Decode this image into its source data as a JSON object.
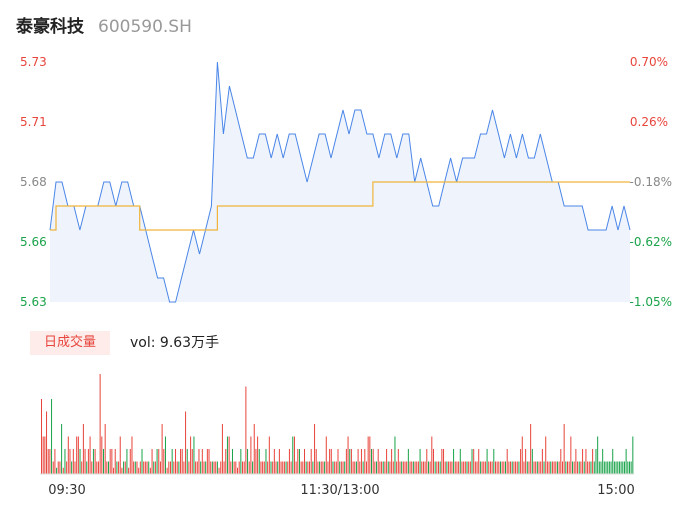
{
  "header": {
    "name": "泰豪科技",
    "code": "600590.SH"
  },
  "volume_panel": {
    "tag_label": "日成交量",
    "vol_text": "vol: 9.63万手"
  },
  "colors": {
    "up": "#e8453c",
    "down": "#1aa34a",
    "price_line": "#4a86e8",
    "avg_line": "#f0b43c",
    "area_fill": "#eef3fc"
  },
  "chart_data": [
    {
      "type": "line",
      "title": "",
      "y_ticks": [
        "5.73",
        "5.71",
        "5.68",
        "5.66",
        "5.63"
      ],
      "y_right_ticks": [
        "0.70%",
        "0.26%",
        "-0.18%",
        "-0.62%",
        "-1.05%"
      ],
      "ylim": [
        5.63,
        5.73
      ],
      "x_labels": [
        "09:30",
        "11:30/13:00",
        "15:00"
      ],
      "grid": false,
      "series": [
        {
          "values": [
            5.66,
            5.68,
            5.68,
            5.67,
            5.67,
            5.66,
            5.67,
            5.67,
            5.67,
            5.68,
            5.68,
            5.67,
            5.68,
            5.68,
            5.67,
            5.67,
            5.66,
            5.65,
            5.64,
            5.64,
            5.63,
            5.63,
            5.64,
            5.65,
            5.66,
            5.65,
            5.66,
            5.67,
            5.73,
            5.7,
            5.72,
            5.71,
            5.7,
            5.69,
            5.69,
            5.7,
            5.7,
            5.69,
            5.7,
            5.69,
            5.7,
            5.7,
            5.69,
            5.68,
            5.69,
            5.7,
            5.7,
            5.69,
            5.7,
            5.71,
            5.7,
            5.71,
            5.71,
            5.7,
            5.7,
            5.69,
            5.7,
            5.7,
            5.69,
            5.7,
            5.7,
            5.68,
            5.69,
            5.68,
            5.67,
            5.67,
            5.68,
            5.69,
            5.68,
            5.69,
            5.69,
            5.69,
            5.7,
            5.7,
            5.71,
            5.7,
            5.69,
            5.7,
            5.69,
            5.7,
            5.69,
            5.69,
            5.7,
            5.69,
            5.68,
            5.68,
            5.67,
            5.67,
            5.67,
            5.67,
            5.66,
            5.66,
            5.66,
            5.66,
            5.67,
            5.66,
            5.67,
            5.66
          ]
        },
        {
          "values": [
            5.66,
            5.67,
            5.67,
            5.67,
            5.67,
            5.67,
            5.67,
            5.67,
            5.67,
            5.67,
            5.67,
            5.67,
            5.67,
            5.67,
            5.67,
            5.66,
            5.66,
            5.66,
            5.66,
            5.66,
            5.66,
            5.66,
            5.66,
            5.66,
            5.66,
            5.66,
            5.66,
            5.66,
            5.67,
            5.67,
            5.67,
            5.67,
            5.67,
            5.67,
            5.67,
            5.67,
            5.67,
            5.67,
            5.67,
            5.67,
            5.67,
            5.67,
            5.67,
            5.67,
            5.67,
            5.67,
            5.67,
            5.67,
            5.67,
            5.67,
            5.67,
            5.67,
            5.67,
            5.67,
            5.68,
            5.68,
            5.68,
            5.68,
            5.68,
            5.68,
            5.68,
            5.68,
            5.68,
            5.68,
            5.68,
            5.68,
            5.68,
            5.68,
            5.68,
            5.68,
            5.68,
            5.68,
            5.68,
            5.68,
            5.68,
            5.68,
            5.68,
            5.68,
            5.68,
            5.68,
            5.68,
            5.68,
            5.68,
            5.68,
            5.68,
            5.68,
            5.68,
            5.68,
            5.68,
            5.68,
            5.68,
            5.68,
            5.68,
            5.68,
            5.68,
            5.68,
            5.68,
            5.68
          ]
        }
      ]
    },
    {
      "type": "bar",
      "title": "",
      "values": [
        6,
        3,
        3,
        5,
        2,
        2,
        6,
        1,
        2,
        0.5,
        1,
        1,
        4,
        0.5,
        2,
        1,
        3,
        2,
        1,
        2,
        1,
        3,
        3,
        2,
        1,
        4,
        2,
        1,
        2,
        3,
        1,
        2,
        2,
        1,
        1,
        8,
        3,
        2,
        4,
        1,
        1,
        2,
        2,
        0.5,
        2,
        1,
        1,
        3,
        0.5,
        1,
        1,
        2,
        0.5,
        2,
        3,
        1,
        1,
        1,
        0.5,
        1,
        2,
        1,
        1,
        1,
        1,
        0.5,
        2,
        1,
        1,
        2,
        2,
        1,
        4,
        2,
        3,
        0.5,
        1,
        1,
        2,
        1,
        2,
        1,
        1,
        2,
        2,
        1,
        5,
        2,
        1,
        3,
        2,
        3,
        1,
        1,
        2,
        1,
        2,
        1,
        1,
        2,
        2,
        1,
        1,
        1,
        1,
        1,
        0.5,
        1,
        4,
        1,
        2,
        3,
        3,
        1,
        2,
        1,
        1,
        0.5,
        1,
        2,
        1,
        1,
        7,
        2,
        1,
        3,
        1,
        4,
        2,
        3,
        2,
        1,
        1,
        1,
        2,
        1,
        3,
        1,
        1,
        2,
        1,
        1,
        2,
        1,
        1,
        1,
        1,
        1,
        2,
        1,
        3,
        3,
        1,
        2,
        2,
        1,
        1,
        2,
        1,
        1,
        1,
        2,
        1,
        4,
        2,
        1,
        1,
        1,
        1,
        1,
        3,
        1,
        2,
        2,
        1,
        1,
        1,
        2,
        1,
        1,
        1,
        1,
        2,
        3,
        2,
        2,
        1,
        1,
        1,
        2,
        1,
        2,
        1,
        2,
        1,
        3,
        3,
        2,
        2,
        1,
        1,
        2,
        1,
        1,
        1,
        1,
        2,
        1,
        1,
        2,
        1,
        3,
        1,
        2,
        1,
        1,
        1,
        1,
        1,
        2,
        1,
        1,
        1,
        1,
        1,
        1,
        2,
        1,
        1,
        1,
        2,
        1,
        1,
        3,
        2,
        1,
        1,
        1,
        1,
        2,
        2,
        1,
        1,
        1,
        1,
        1,
        2,
        1,
        1,
        1,
        2,
        1,
        1,
        1,
        1,
        1,
        1,
        2,
        2,
        1,
        1,
        2,
        1,
        1,
        1,
        1,
        2,
        1,
        1,
        1,
        2,
        1,
        1,
        1,
        1,
        1,
        1,
        1,
        2,
        1,
        1,
        1,
        1,
        1,
        1,
        1,
        2,
        3,
        1,
        2,
        1,
        1,
        4,
        2,
        1,
        1,
        1,
        1,
        1,
        2,
        1,
        3,
        1,
        1,
        1,
        1,
        1,
        1,
        1,
        1,
        2,
        1,
        4,
        1,
        1,
        1,
        3,
        1,
        1,
        2,
        1,
        1,
        1,
        2,
        1,
        2,
        1,
        1,
        1,
        2,
        1,
        2,
        3,
        1,
        1,
        2,
        1,
        1,
        1,
        1,
        1,
        2,
        1,
        1,
        1,
        1,
        1,
        1,
        1,
        2,
        1,
        1,
        1,
        3
      ],
      "ups": [
        1,
        1,
        1,
        1,
        1,
        1,
        0,
        1,
        1,
        0,
        1,
        1,
        0,
        1,
        0,
        1,
        1,
        1,
        0,
        1,
        1,
        1,
        1,
        0,
        1,
        1,
        1,
        0,
        1,
        1,
        1,
        0,
        1,
        1,
        1,
        1,
        1,
        0,
        1,
        1,
        0,
        1,
        1,
        1,
        1,
        0,
        1,
        1,
        1,
        0,
        1,
        0,
        1,
        1,
        1,
        1,
        0,
        1,
        1,
        1,
        0,
        1,
        1,
        1,
        0,
        1,
        1,
        0,
        1,
        0,
        1,
        1,
        1,
        1,
        0,
        1,
        1,
        1,
        0,
        1,
        1,
        1,
        0,
        1,
        1,
        1,
        1,
        0,
        1,
        1,
        1,
        0,
        1,
        1,
        1,
        0,
        1,
        1,
        0,
        1,
        1,
        1,
        0,
        1,
        1,
        0,
        1,
        1,
        1,
        1,
        1,
        0,
        1,
        1,
        0,
        1,
        1,
        1,
        1,
        0,
        1,
        1,
        1,
        0,
        1,
        1,
        0,
        1,
        1,
        1,
        0,
        1,
        1,
        1,
        0,
        1,
        1,
        0,
        1,
        1,
        1,
        0,
        1,
        1,
        1,
        1,
        0,
        1,
        1,
        1,
        0,
        1,
        1,
        1,
        0,
        1,
        1,
        1,
        0,
        1,
        1,
        1,
        0,
        1,
        1,
        1,
        0,
        1,
        1,
        0,
        1,
        1,
        1,
        1,
        0,
        1,
        1,
        1,
        0,
        1,
        1,
        0,
        1,
        1,
        0,
        1,
        1,
        1,
        0,
        1,
        1,
        1,
        0,
        1,
        1,
        1,
        1,
        0,
        1,
        1,
        0,
        1,
        1,
        1,
        0,
        1,
        1,
        0,
        1,
        1,
        1,
        0,
        1,
        1,
        1,
        0,
        1,
        1,
        1,
        0,
        1,
        1,
        0,
        1,
        1,
        1,
        0,
        1,
        1,
        1,
        1,
        0,
        1,
        1,
        1,
        0,
        1,
        1,
        0,
        1,
        1,
        1,
        0,
        1,
        1,
        1,
        0,
        1,
        1,
        1,
        0,
        1,
        1,
        1,
        0,
        1,
        1,
        0,
        1,
        1,
        1,
        1,
        0,
        1,
        1,
        1,
        0,
        1,
        1,
        1,
        0,
        1,
        1,
        1,
        0,
        1,
        1,
        0,
        1,
        1,
        1,
        0,
        1,
        1,
        1,
        0,
        1,
        1,
        1,
        1,
        0,
        1,
        1,
        0,
        1,
        1,
        0,
        1,
        1,
        1,
        0,
        1,
        1,
        1,
        0,
        1,
        1,
        1,
        0,
        1,
        1,
        1,
        1,
        0,
        1,
        1,
        1,
        0,
        1,
        1,
        1,
        0,
        1,
        1,
        0,
        1,
        1,
        1,
        0,
        1
      ]
    }
  ]
}
